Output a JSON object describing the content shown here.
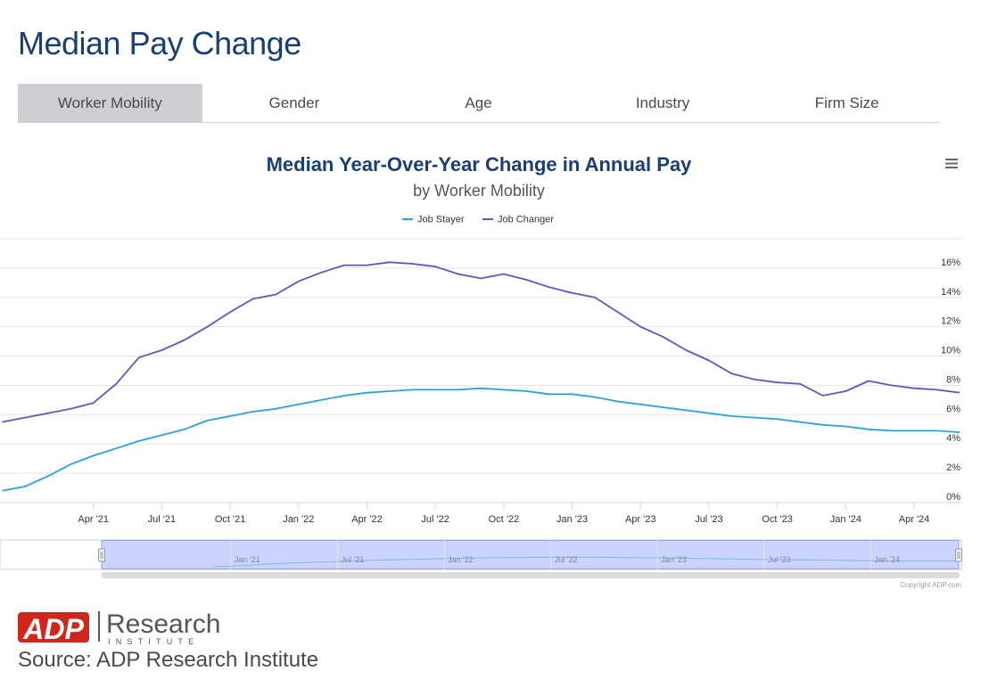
{
  "page": {
    "title": "Median Pay Change",
    "source": "Source: ADP Research Institute",
    "copyright": "Copyright ADP.com"
  },
  "tabs": [
    {
      "label": "Worker Mobility",
      "active": true
    },
    {
      "label": "Gender",
      "active": false
    },
    {
      "label": "Age",
      "active": false
    },
    {
      "label": "Industry",
      "active": false
    },
    {
      "label": "Firm Size",
      "active": false
    }
  ],
  "logo": {
    "wordmark": "ADP",
    "name": "Research",
    "sub": "INSTITUTE",
    "red": "#d0271d",
    "gray": "#555555"
  },
  "menu_icon": "hamburger-menu-icon",
  "chart_data": {
    "type": "line",
    "title": "Median Year-Over-Year Change in Annual Pay",
    "subtitle": "by Worker Mobility",
    "x": [
      "2020-12",
      "2021-01",
      "2021-02",
      "2021-03",
      "2021-04",
      "2021-05",
      "2021-06",
      "2021-07",
      "2021-08",
      "2021-09",
      "2021-10",
      "2021-11",
      "2021-12",
      "2022-01",
      "2022-02",
      "2022-03",
      "2022-04",
      "2022-05",
      "2022-06",
      "2022-07",
      "2022-08",
      "2022-09",
      "2022-10",
      "2022-11",
      "2022-12",
      "2023-01",
      "2023-02",
      "2023-03",
      "2023-04",
      "2023-05",
      "2023-06",
      "2023-07",
      "2023-08",
      "2023-09",
      "2023-10",
      "2023-11",
      "2023-12",
      "2024-01",
      "2024-02",
      "2024-03",
      "2024-04",
      "2024-05",
      "2024-06"
    ],
    "series": [
      {
        "name": "Job Stayer",
        "color": "#2b9fe6",
        "values": [
          0.8,
          1.1,
          1.8,
          2.6,
          3.2,
          3.7,
          4.2,
          4.6,
          5.0,
          5.6,
          5.9,
          6.2,
          6.4,
          6.7,
          7.0,
          7.3,
          7.5,
          7.6,
          7.7,
          7.7,
          7.7,
          7.8,
          7.7,
          7.6,
          7.4,
          7.4,
          7.2,
          6.9,
          6.7,
          6.5,
          6.3,
          6.1,
          5.9,
          5.8,
          5.7,
          5.5,
          5.3,
          5.2,
          5.0,
          4.9,
          4.9,
          4.9,
          4.8
        ]
      },
      {
        "name": "Job Changer",
        "color": "#6a4fc9",
        "values": [
          5.5,
          5.8,
          6.1,
          6.4,
          6.8,
          8.1,
          9.9,
          10.4,
          11.1,
          12.0,
          13.0,
          13.9,
          14.2,
          15.1,
          15.7,
          16.2,
          16.2,
          16.4,
          16.3,
          16.1,
          15.6,
          15.3,
          15.6,
          15.2,
          14.7,
          14.3,
          14.0,
          13.0,
          12.0,
          11.3,
          10.4,
          9.7,
          8.8,
          8.4,
          8.2,
          8.1,
          7.3,
          7.6,
          8.3,
          8.0,
          7.8,
          7.7,
          7.5
        ]
      }
    ],
    "x_tick_labels": [
      "Apr '21",
      "Jul '21",
      "Oct '21",
      "Jan '22",
      "Apr '22",
      "Jul '22",
      "Oct '22",
      "Jan '23",
      "Apr '23",
      "Jul '23",
      "Oct '23",
      "Jan '24",
      "Apr '24"
    ],
    "x_tick_dates": [
      "2021-04",
      "2021-07",
      "2021-10",
      "2022-01",
      "2022-04",
      "2022-07",
      "2022-10",
      "2023-01",
      "2023-04",
      "2023-07",
      "2023-10",
      "2024-01",
      "2024-04"
    ],
    "y_tick_labels": [
      "0%",
      "2%",
      "4%",
      "6%",
      "8%",
      "10%",
      "12%",
      "14%",
      "16%"
    ],
    "y_tick_values": [
      0,
      2,
      4,
      6,
      8,
      10,
      12,
      14,
      16
    ],
    "ylim": [
      0,
      18
    ],
    "xlim": [
      "2021-01",
      "2024-06"
    ],
    "navigator_tick_labels": [
      "Jan '21",
      "Jul '21",
      "Jan '22",
      "Jul '22",
      "Jan '23",
      "Jul '23",
      "Jan '24"
    ],
    "navigator_tick_dates": [
      "2021-01",
      "2021-07",
      "2022-01",
      "2022-07",
      "2023-01",
      "2023-07",
      "2024-01"
    ],
    "navigator_xlim": [
      "2019-12",
      "2024-06"
    ],
    "navigator_selection": [
      "2021-07",
      "2024-06"
    ],
    "legend_position": "top-center",
    "grid": true
  }
}
